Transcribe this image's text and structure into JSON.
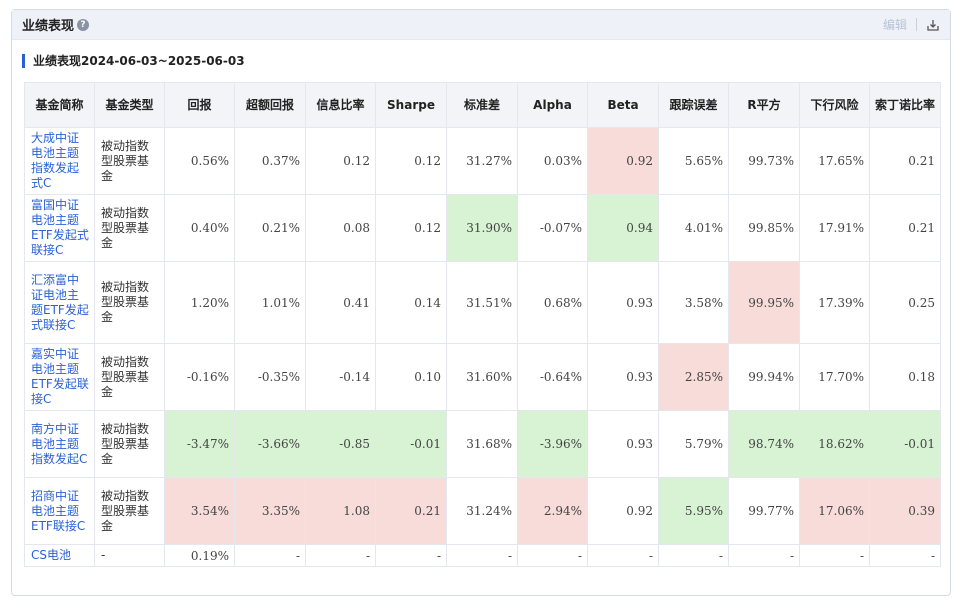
{
  "panel": {
    "title": "业绩表现",
    "help_glyph": "?",
    "edit_label": "编辑",
    "subtitle": "业绩表现2024-06-03~2025-06-03"
  },
  "table": {
    "columns": [
      "基金简称",
      "基金类型",
      "回报",
      "超额回报",
      "信息比率",
      "Sharpe",
      "标准差",
      "Alpha",
      "Beta",
      "跟踪误差",
      "R平方",
      "下行风险",
      "索丁诺比率"
    ],
    "rows": [
      {
        "name": "大成中证电池主题指数发起式C",
        "type": "被动指数型股票基金",
        "values": [
          "0.56%",
          "0.37%",
          "0.12",
          "0.12",
          "31.27%",
          "0.03%",
          "0.92",
          "5.65%",
          "99.73%",
          "17.65%",
          "0.21"
        ],
        "highlight": [
          "",
          "",
          "",
          "",
          "",
          "",
          "red",
          "",
          "",
          "",
          ""
        ]
      },
      {
        "name": "富国中证电池主题ETF发起式联接C",
        "type": "被动指数型股票基金",
        "values": [
          "0.40%",
          "0.21%",
          "0.08",
          "0.12",
          "31.90%",
          "-0.07%",
          "0.94",
          "4.01%",
          "99.85%",
          "17.91%",
          "0.21"
        ],
        "highlight": [
          "",
          "",
          "",
          "",
          "green",
          "",
          "green",
          "",
          "",
          "",
          ""
        ]
      },
      {
        "name": "汇添富中证电池主题ETF发起式联接C",
        "type": "被动指数型股票基金",
        "values": [
          "1.20%",
          "1.01%",
          "0.41",
          "0.14",
          "31.51%",
          "0.68%",
          "0.93",
          "3.58%",
          "99.95%",
          "17.39%",
          "0.25"
        ],
        "highlight": [
          "",
          "",
          "",
          "",
          "",
          "",
          "",
          "",
          "red",
          "",
          ""
        ]
      },
      {
        "name": "嘉实中证电池主题ETF发起联接C",
        "type": "被动指数型股票基金",
        "values": [
          "-0.16%",
          "-0.35%",
          "-0.14",
          "0.10",
          "31.60%",
          "-0.64%",
          "0.93",
          "2.85%",
          "99.94%",
          "17.70%",
          "0.18"
        ],
        "highlight": [
          "",
          "",
          "",
          "",
          "",
          "",
          "",
          "red",
          "",
          "",
          ""
        ]
      },
      {
        "name": "南方中证电池主题指数发起C",
        "type": "被动指数型股票基金",
        "values": [
          "-3.47%",
          "-3.66%",
          "-0.85",
          "-0.01",
          "31.68%",
          "-3.96%",
          "0.93",
          "5.79%",
          "98.74%",
          "18.62%",
          "-0.01"
        ],
        "highlight": [
          "green",
          "green",
          "green",
          "green",
          "",
          "green",
          "",
          "",
          "green",
          "green",
          "green"
        ]
      },
      {
        "name": "招商中证电池主题ETF联接C",
        "type": "被动指数型股票基金",
        "values": [
          "3.54%",
          "3.35%",
          "1.08",
          "0.21",
          "31.24%",
          "2.94%",
          "0.92",
          "5.95%",
          "99.77%",
          "17.06%",
          "0.39"
        ],
        "highlight": [
          "red",
          "red",
          "red",
          "red",
          "",
          "red",
          "",
          "green",
          "",
          "red",
          "red"
        ]
      },
      {
        "name": "CS电池",
        "type": "-",
        "values": [
          "0.19%",
          "-",
          "-",
          "-",
          "-",
          "-",
          "-",
          "-",
          "-",
          "-",
          "-"
        ],
        "highlight": [
          "",
          "",
          "",
          "",
          "",
          "",
          "",
          "",
          "",
          "",
          ""
        ]
      }
    ]
  },
  "colors": {
    "green": "#d8f2d4",
    "red": "#f7dcda",
    "link": "#2a62d6",
    "accent": "#2b5fd9"
  },
  "icons": {
    "help": "help-icon",
    "export": "export-icon"
  }
}
